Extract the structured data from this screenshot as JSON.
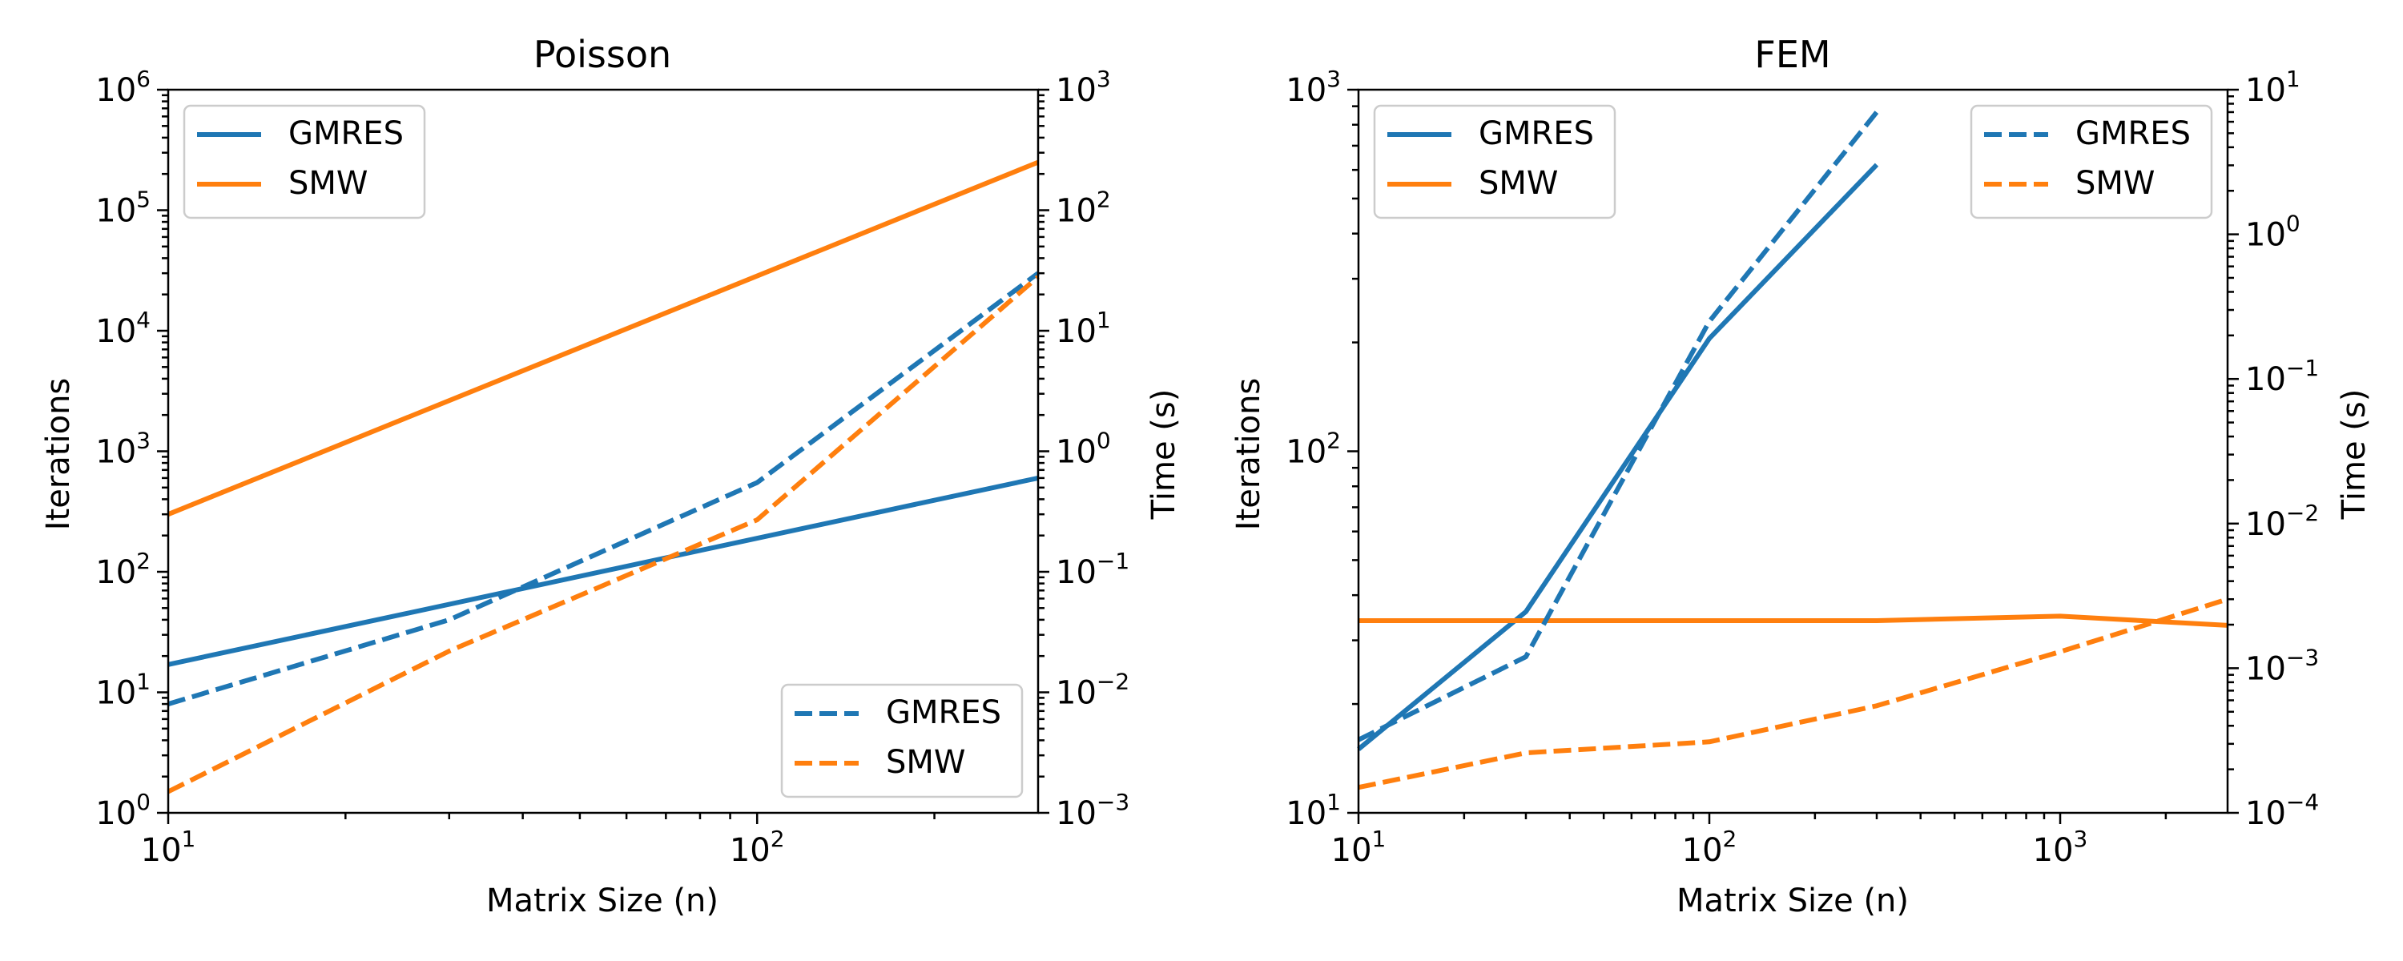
{
  "colors": {
    "gmres": "#1f77b4",
    "smw": "#ff7f0e",
    "axes": "#000000",
    "legend_border": "#cccccc"
  },
  "chart_data": [
    {
      "type": "line",
      "title": "Poisson",
      "xlabel": "Matrix Size (n)",
      "ylabel": "Iterations",
      "ylabel_right": "Time (s)",
      "xscale": "log",
      "yscale": "log",
      "yscale_right": "log",
      "xlim": [
        10,
        300
      ],
      "ylim": [
        1,
        1000000
      ],
      "ylim_right": [
        0.001,
        1000
      ],
      "grid": false,
      "x_ticks": [
        {
          "exp": "1"
        },
        {
          "exp": "2"
        }
      ],
      "y_ticks": [
        {
          "exp": "0"
        },
        {
          "exp": "1"
        },
        {
          "exp": "2"
        },
        {
          "exp": "3"
        },
        {
          "exp": "4"
        },
        {
          "exp": "5"
        },
        {
          "exp": "6"
        }
      ],
      "y_ticks_right": [
        {
          "exp": "−3"
        },
        {
          "exp": "−2"
        },
        {
          "exp": "−1"
        },
        {
          "exp": "0"
        },
        {
          "exp": "1"
        },
        {
          "exp": "2"
        },
        {
          "exp": "3"
        }
      ],
      "series": [
        {
          "name": "GMRES",
          "axis": "left",
          "style": "solid",
          "color": "#1f77b4",
          "x": [
            10,
            300
          ],
          "y": [
            17,
            600
          ]
        },
        {
          "name": "SMW",
          "axis": "left",
          "style": "solid",
          "color": "#ff7f0e",
          "x": [
            10,
            300
          ],
          "y": [
            300,
            250000
          ]
        },
        {
          "name": "GMRES",
          "axis": "right",
          "style": "dashed",
          "color": "#1f77b4",
          "x": [
            10,
            30,
            100,
            300
          ],
          "y": [
            0.008,
            0.04,
            0.55,
            30
          ]
        },
        {
          "name": "SMW",
          "axis": "right",
          "style": "dashed",
          "color": "#ff7f0e",
          "x": [
            10,
            30,
            100,
            300
          ],
          "y": [
            0.0015,
            0.022,
            0.27,
            28
          ]
        }
      ],
      "legends": [
        {
          "position": "upper-left",
          "style": "solid",
          "entries": [
            {
              "label": "GMRES",
              "color": "#1f77b4"
            },
            {
              "label": "SMW",
              "color": "#ff7f0e"
            }
          ]
        },
        {
          "position": "lower-right",
          "style": "dashed",
          "entries": [
            {
              "label": "GMRES",
              "color": "#1f77b4"
            },
            {
              "label": "SMW",
              "color": "#ff7f0e"
            }
          ]
        }
      ]
    },
    {
      "type": "line",
      "title": "FEM",
      "xlabel": "Matrix Size (n)",
      "ylabel": "Iterations",
      "ylabel_right": "Time (s)",
      "xscale": "log",
      "yscale": "log",
      "yscale_right": "log",
      "xlim": [
        10,
        3000
      ],
      "ylim": [
        10,
        1000
      ],
      "ylim_right": [
        0.0001,
        10
      ],
      "grid": false,
      "x_ticks": [
        {
          "exp": "1"
        },
        {
          "exp": "2"
        },
        {
          "exp": "3"
        }
      ],
      "y_ticks": [
        {
          "exp": "1"
        },
        {
          "exp": "2"
        },
        {
          "exp": "3"
        }
      ],
      "y_ticks_right": [
        {
          "exp": "−4"
        },
        {
          "exp": "−3"
        },
        {
          "exp": "−2"
        },
        {
          "exp": "−1"
        },
        {
          "exp": "0"
        },
        {
          "exp": "1"
        }
      ],
      "series": [
        {
          "name": "GMRES",
          "axis": "left",
          "style": "solid",
          "color": "#1f77b4",
          "x": [
            10,
            30,
            100,
            300
          ],
          "y": [
            15,
            36,
            205,
            620
          ]
        },
        {
          "name": "SMW",
          "axis": "left",
          "style": "solid",
          "color": "#ff7f0e",
          "x": [
            10,
            30,
            100,
            300,
            1000,
            3000
          ],
          "y": [
            34,
            34,
            34,
            34,
            35,
            33
          ]
        },
        {
          "name": "GMRES",
          "axis": "right",
          "style": "dashed",
          "color": "#1f77b4",
          "x": [
            10,
            30,
            100,
            300
          ],
          "y": [
            0.00032,
            0.0012,
            0.25,
            7
          ]
        },
        {
          "name": "SMW",
          "axis": "right",
          "style": "dashed",
          "color": "#ff7f0e",
          "x": [
            10,
            30,
            100,
            300,
            1000,
            3000
          ],
          "y": [
            0.00015,
            0.00026,
            0.00031,
            0.00055,
            0.0013,
            0.003
          ]
        }
      ],
      "legends": [
        {
          "position": "upper-left",
          "style": "solid",
          "entries": [
            {
              "label": "GMRES",
              "color": "#1f77b4"
            },
            {
              "label": "SMW",
              "color": "#ff7f0e"
            }
          ]
        },
        {
          "position": "upper-right",
          "style": "dashed",
          "entries": [
            {
              "label": "GMRES",
              "color": "#1f77b4"
            },
            {
              "label": "SMW",
              "color": "#ff7f0e"
            }
          ]
        }
      ]
    }
  ]
}
